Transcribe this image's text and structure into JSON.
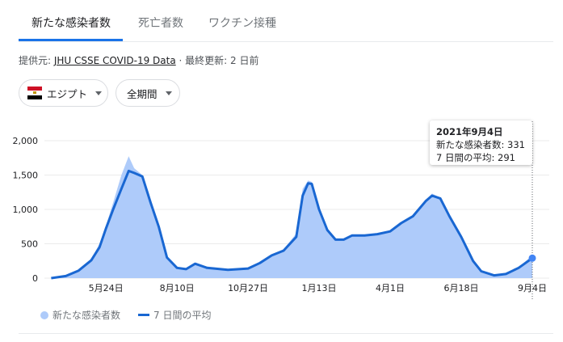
{
  "tabs": [
    {
      "label": "新たな感染者数",
      "active": true
    },
    {
      "label": "死亡者数"
    },
    {
      "label": "ワクチン接種"
    }
  ],
  "source": {
    "prefix": "提供元: ",
    "link": "JHU CSSE COVID-19 Data",
    "updated": " · 最終更新: 2 日前"
  },
  "filters": {
    "country": "エジプト",
    "country_flag": "egypt-flag-icon",
    "period": "全期間"
  },
  "tooltip": {
    "date": "2021年9月4日",
    "cases": "新たな感染者数: 331",
    "avg": "7 日間の平均: 291"
  },
  "legend": {
    "cases": "新たな感染者数",
    "avg": "7 日間の平均"
  },
  "colors": {
    "accent": "#1a73e8",
    "area": "#aecbfa",
    "line": "#1967d2"
  },
  "chart_data": {
    "type": "area",
    "ylim": [
      0,
      2000
    ],
    "yticks": [
      "0",
      "500",
      "1,000",
      "1,500",
      "2,000"
    ],
    "xticks": [
      {
        "date": "2020-05-24",
        "label": "5月24日"
      },
      {
        "date": "2020-08-10",
        "label": "8月10日"
      },
      {
        "date": "2020-10-27",
        "label": "10月27日"
      },
      {
        "date": "2021-01-13",
        "label": "1月13日"
      },
      {
        "date": "2021-04-01",
        "label": "4月1日"
      },
      {
        "date": "2021-06-18",
        "label": "6月18日"
      },
      {
        "date": "2021-09-04",
        "label": "9月4日"
      }
    ],
    "grid": true,
    "legend": "bottom",
    "x": [
      "2020-03-25",
      "2020-04-10",
      "2020-04-24",
      "2020-05-08",
      "2020-05-17",
      "2020-05-24",
      "2020-06-01",
      "2020-06-10",
      "2020-06-18",
      "2020-06-24",
      "2020-07-03",
      "2020-07-12",
      "2020-07-21",
      "2020-07-30",
      "2020-08-10",
      "2020-08-20",
      "2020-08-30",
      "2020-09-12",
      "2020-10-05",
      "2020-10-27",
      "2020-11-09",
      "2020-11-22",
      "2020-12-05",
      "2020-12-19",
      "2020-12-26",
      "2021-01-01",
      "2021-01-05",
      "2021-01-13",
      "2021-01-22",
      "2021-01-31",
      "2021-02-09",
      "2021-02-18",
      "2021-03-04",
      "2021-03-18",
      "2021-04-01",
      "2021-04-13",
      "2021-04-26",
      "2021-05-10",
      "2021-05-17",
      "2021-05-26",
      "2021-06-05",
      "2021-06-18",
      "2021-07-01",
      "2021-07-10",
      "2021-07-24",
      "2021-08-06",
      "2021-08-20",
      "2021-09-04"
    ],
    "series": [
      {
        "name": "新たな感染者数",
        "values": [
          10,
          40,
          120,
          280,
          500,
          760,
          1100,
          1500,
          1774,
          1600,
          1500,
          1150,
          780,
          320,
          160,
          140,
          220,
          160,
          125,
          150,
          230,
          340,
          420,
          650,
          1300,
          1420,
          1400,
          1020,
          720,
          570,
          570,
          630,
          630,
          650,
          690,
          820,
          920,
          1140,
          1230,
          1170,
          920,
          620,
          270,
          110,
          45,
          70,
          160,
          331
        ]
      },
      {
        "name": "7 日間の平均",
        "values": [
          0,
          30,
          110,
          260,
          450,
          720,
          1000,
          1300,
          1560,
          1530,
          1480,
          1100,
          750,
          300,
          150,
          130,
          210,
          150,
          120,
          140,
          220,
          330,
          400,
          600,
          1200,
          1380,
          1370,
          1000,
          700,
          560,
          560,
          620,
          620,
          640,
          680,
          800,
          900,
          1120,
          1200,
          1160,
          900,
          600,
          250,
          100,
          40,
          60,
          150,
          291
        ]
      }
    ]
  }
}
